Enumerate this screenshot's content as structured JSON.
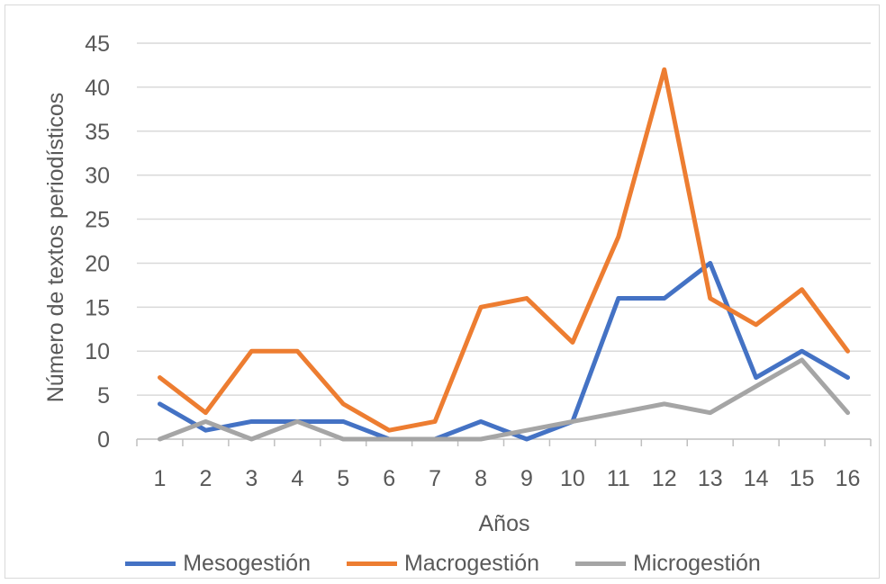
{
  "chart_data": {
    "type": "line",
    "xlabel": "Años",
    "ylabel": "Número de textos periodísticos",
    "categories": [
      "1",
      "2",
      "3",
      "4",
      "5",
      "6",
      "7",
      "8",
      "9",
      "10",
      "11",
      "12",
      "13",
      "14",
      "15",
      "16"
    ],
    "ylim": [
      0,
      45
    ],
    "yticks": [
      "0",
      "5",
      "10",
      "15",
      "20",
      "25",
      "30",
      "35",
      "40",
      "45"
    ],
    "grid": true,
    "legend_position": "bottom",
    "series": [
      {
        "name": "Mesogestión",
        "color": "#4472C4",
        "values": [
          4,
          1,
          2,
          2,
          2,
          0,
          0,
          2,
          0,
          2,
          16,
          16,
          20,
          7,
          10,
          7
        ]
      },
      {
        "name": "Macrogestión",
        "color": "#ED7D31",
        "values": [
          7,
          3,
          10,
          10,
          4,
          1,
          2,
          15,
          16,
          11,
          23,
          42,
          16,
          13,
          17,
          10
        ]
      },
      {
        "name": "Microgestión",
        "color": "#A5A5A5",
        "values": [
          0,
          2,
          0,
          2,
          0,
          0,
          0,
          0,
          1,
          2,
          3,
          4,
          3,
          6,
          9,
          3
        ]
      }
    ]
  }
}
